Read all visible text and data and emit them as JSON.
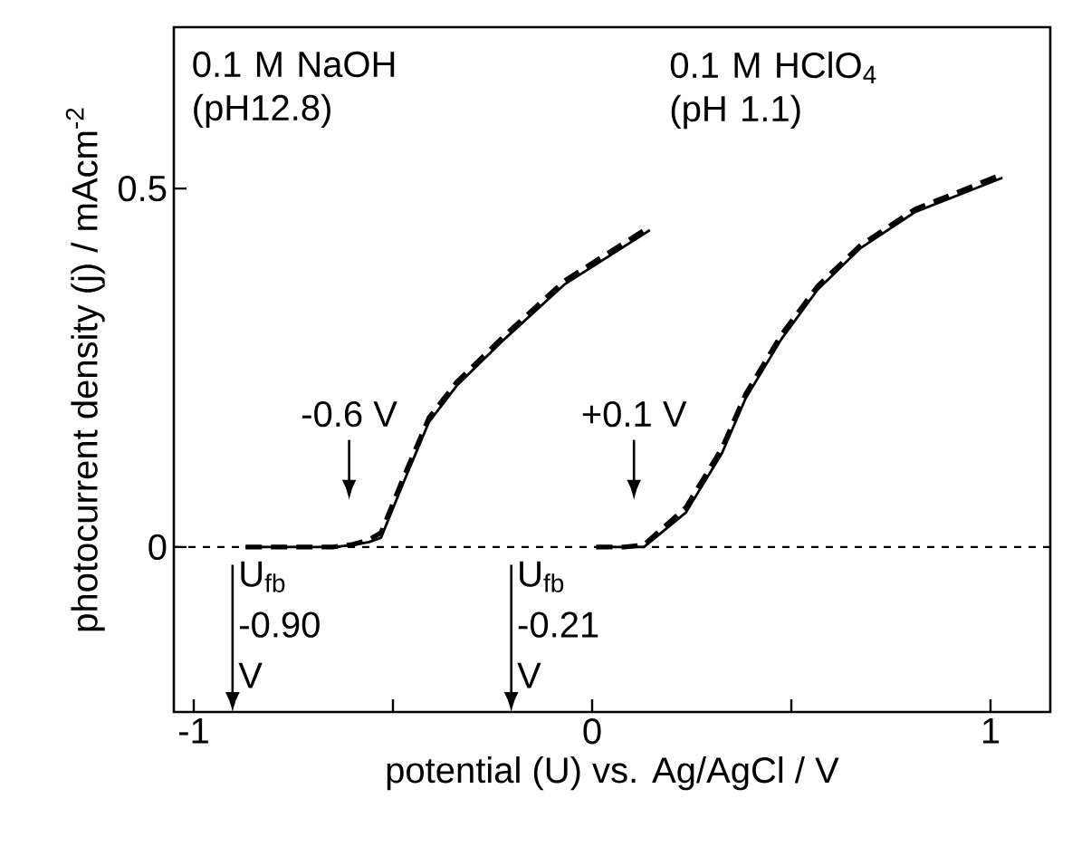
{
  "chart_data": {
    "type": "line",
    "xlabel": "potential (U) vs. Ag/AgCl / V",
    "ylabel": "photocurrent density (j) / mAcm$^{-2}$",
    "xlim": [
      -1.05,
      1.15
    ],
    "ylim": [
      -0.23,
      0.725
    ],
    "xticks": [
      -1,
      {
        "value": -0.5,
        "label": null
      },
      0,
      {
        "value": 0.5,
        "label": null
      },
      1
    ],
    "yticks": [
      0,
      0.5
    ],
    "series": [
      {
        "color": "#000000",
        "line_style": "solid",
        "x": [
          -0.87,
          -0.75,
          -0.65,
          -0.6,
          -0.56,
          -0.53,
          -0.475,
          -0.41,
          -0.34,
          -0.22,
          -0.07,
          0.145
        ],
        "values": [
          0,
          0,
          0,
          0.003,
          0.007,
          0.013,
          0.088,
          0.174,
          0.225,
          0.29,
          0.366,
          0.442
        ]
      },
      {
        "color": "#000000",
        "line_style": "dashed",
        "x": [
          -0.87,
          -0.75,
          -0.65,
          -0.6,
          -0.56,
          -0.53,
          -0.475,
          -0.41,
          -0.34,
          -0.22,
          -0.07,
          0.145
        ],
        "values": [
          0,
          0,
          0,
          0.004,
          0.01,
          0.02,
          0.095,
          0.18,
          0.23,
          0.295,
          0.371,
          0.447
        ]
      },
      {
        "color": "#000000",
        "line_style": "solid",
        "x": [
          0.01,
          0.08,
          0.13,
          0.235,
          0.326,
          0.385,
          0.475,
          0.566,
          0.674,
          0.81,
          1.03
        ],
        "values": [
          0,
          0,
          0,
          0.048,
          0.131,
          0.207,
          0.29,
          0.359,
          0.417,
          0.467,
          0.515
        ]
      },
      {
        "color": "#000000",
        "line_style": "dashed",
        "x": [
          0.01,
          0.08,
          0.13,
          0.235,
          0.326,
          0.385,
          0.475,
          0.566,
          0.674,
          0.81,
          1.03
        ],
        "values": [
          0,
          0,
          0.003,
          0.055,
          0.138,
          0.213,
          0.296,
          0.364,
          0.421,
          0.471,
          0.52
        ]
      }
    ],
    "ref_lines": [
      {
        "axis": "y",
        "value": 0,
        "line_style": "dotted",
        "color": "#000000"
      }
    ],
    "annotations": [
      "0.1 M NaOH (pH12.8)",
      "0.1 M HClO$_{4}$ (pH 1.1)",
      "-0.6 V",
      "+0.1 V",
      "U$_{fb}$ -0.90 V",
      "U$_{fb}$ -0.21 V"
    ],
    "grid": false,
    "marker": "none"
  }
}
